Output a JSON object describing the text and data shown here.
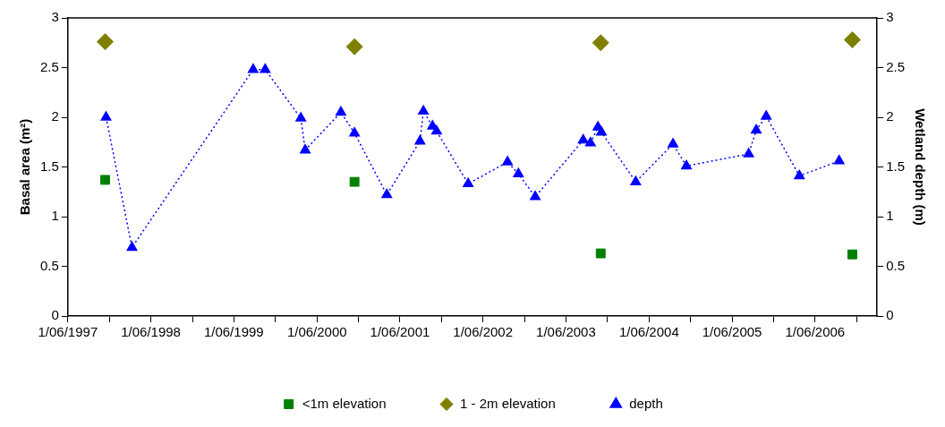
{
  "chart_data": {
    "type": "scatter",
    "ylabel": "Basal area (m²)",
    "y2label": "Wetland depth (m)",
    "xlim": [
      "1997-06-01",
      "2007-03-01"
    ],
    "xticks": [
      {
        "value": "1997-06-01",
        "label": "1/06/1997"
      },
      {
        "value": "1997-12-01",
        "label": null
      },
      {
        "value": "1998-06-01",
        "label": "1/06/1998"
      },
      {
        "value": "1998-12-01",
        "label": null
      },
      {
        "value": "1999-06-01",
        "label": "1/06/1999"
      },
      {
        "value": "1999-12-01",
        "label": null
      },
      {
        "value": "2000-06-01",
        "label": "1/06/2000"
      },
      {
        "value": "2000-12-01",
        "label": null
      },
      {
        "value": "2001-06-01",
        "label": "1/06/2001"
      },
      {
        "value": "2001-12-01",
        "label": null
      },
      {
        "value": "2002-06-01",
        "label": "1/06/2002"
      },
      {
        "value": "2002-12-01",
        "label": null
      },
      {
        "value": "2003-06-01",
        "label": "1/06/2003"
      },
      {
        "value": "2003-12-01",
        "label": null
      },
      {
        "value": "2004-06-01",
        "label": "1/06/2004"
      },
      {
        "value": "2004-12-01",
        "label": null
      },
      {
        "value": "2005-06-01",
        "label": "1/06/2005"
      },
      {
        "value": "2005-12-01",
        "label": null
      },
      {
        "value": "2006-06-01",
        "label": "1/06/2006"
      },
      {
        "value": "2006-12-01",
        "label": null
      }
    ],
    "ylim": [
      0,
      3
    ],
    "yticks": [
      0,
      0.5,
      1,
      1.5,
      2,
      2.5,
      3
    ],
    "y2lim": [
      0,
      3
    ],
    "y2ticks": [
      0,
      0.5,
      1,
      1.5,
      2,
      2.5,
      3
    ],
    "grid": false,
    "legend": "bottom",
    "series": [
      {
        "name": "<1m elevation",
        "type": "scatter",
        "marker": "square",
        "color": "#008000",
        "x": [
          "1997-11-12",
          "2000-11-13",
          "2003-11-01",
          "2006-11-12"
        ],
        "values": [
          1.37,
          1.35,
          0.63,
          0.62
        ]
      },
      {
        "name": "1 - 2m elevation",
        "type": "scatter",
        "marker": "diamond",
        "color": "#808000",
        "x": [
          "1997-11-12",
          "2000-11-13",
          "2003-11-01",
          "2006-11-12"
        ],
        "values": [
          2.76,
          2.71,
          2.75,
          2.78
        ]
      },
      {
        "name": "depth",
        "type": "line",
        "axis": "y2",
        "marker": "triangle",
        "line_style": "dotted",
        "color": "#0000ff",
        "x": [
          "1997-11-16",
          "1998-03-10",
          "1999-08-25",
          "1999-10-17",
          "2000-03-22",
          "2000-04-10",
          "2000-09-14",
          "2000-11-13",
          "2001-04-04",
          "2001-08-28",
          "2001-09-12",
          "2001-10-22",
          "2001-11-09",
          "2002-03-28",
          "2002-09-17",
          "2002-11-04",
          "2003-01-17",
          "2003-08-16",
          "2003-09-17",
          "2003-10-20",
          "2003-11-04",
          "2004-04-03",
          "2004-09-14",
          "2004-11-12",
          "2005-08-13",
          "2005-09-15",
          "2005-10-29",
          "2006-03-24",
          "2006-09-15"
        ],
        "values": [
          2.0,
          0.69,
          2.48,
          2.48,
          1.99,
          1.67,
          2.05,
          1.84,
          1.22,
          1.76,
          2.06,
          1.91,
          1.86,
          1.33,
          1.55,
          1.43,
          1.2,
          1.77,
          1.74,
          1.9,
          1.85,
          1.35,
          1.73,
          1.51,
          1.63,
          1.87,
          2.01,
          1.41,
          1.56
        ]
      }
    ]
  }
}
